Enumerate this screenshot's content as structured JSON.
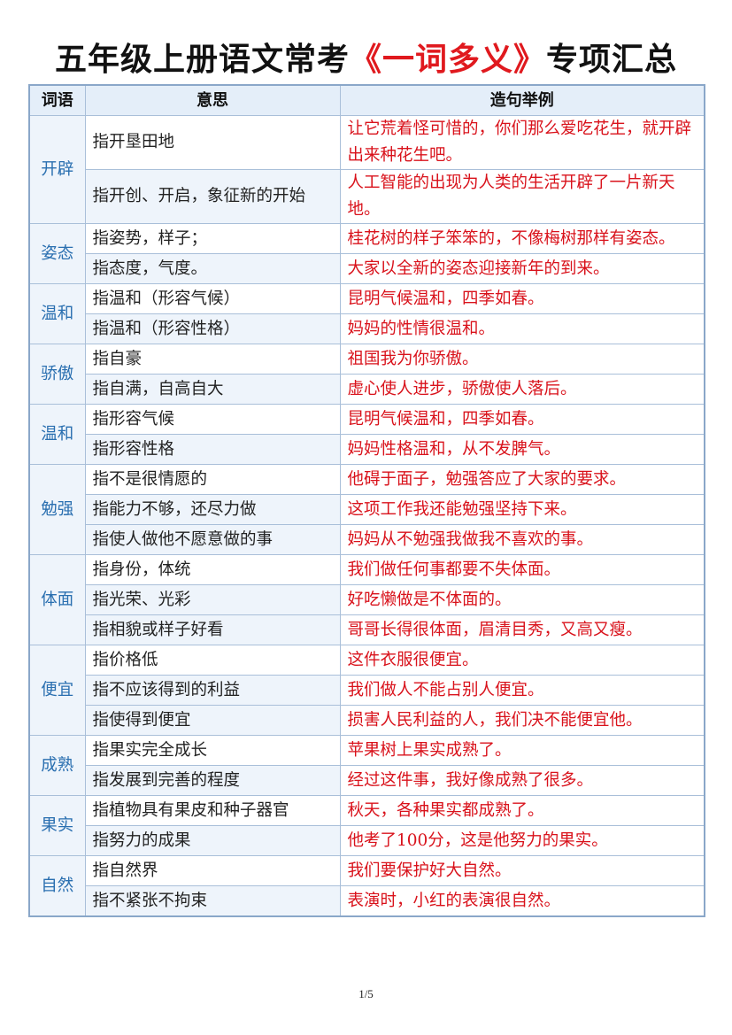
{
  "title": {
    "part1": "五年级上册语文常考",
    "highlight": "《一词多义》",
    "part2": "专项汇总"
  },
  "table": {
    "headers": [
      "词语",
      "意思",
      "造句举例"
    ],
    "groups": [
      {
        "word": "开辟",
        "rows": [
          {
            "meaning": "指开垦田地",
            "example": "让它荒着怪可惜的，你们那么爱吃花生，就开辟出来种花生吧。"
          },
          {
            "meaning": "指开创、开启，象征新的开始",
            "example": "人工智能的出现为人类的生活开辟了一片新天地。"
          }
        ]
      },
      {
        "word": "姿态",
        "rows": [
          {
            "meaning": "指姿势，样子；",
            "example": "桂花树的样子笨笨的，不像梅树那样有姿态。"
          },
          {
            "meaning": "指态度，气度。",
            "example": "大家以全新的姿态迎接新年的到来。"
          }
        ]
      },
      {
        "word": "温和",
        "rows": [
          {
            "meaning": "指温和（形容气候）",
            "example": "昆明气候温和，四季如春。"
          },
          {
            "meaning": "指温和（形容性格）",
            "example": "妈妈的性情很温和。"
          }
        ]
      },
      {
        "word": "骄傲",
        "rows": [
          {
            "meaning": "指自豪",
            "example": "祖国我为你骄傲。"
          },
          {
            "meaning": "指自满，自高自大",
            "example": "虚心使人进步，骄傲使人落后。"
          }
        ]
      },
      {
        "word": "温和",
        "rows": [
          {
            "meaning": "指形容气候",
            "example": "昆明气候温和，四季如春。"
          },
          {
            "meaning": "指形容性格",
            "example": "妈妈性格温和，从不发脾气。"
          }
        ]
      },
      {
        "word": "勉强",
        "rows": [
          {
            "meaning": "指不是很情愿的",
            "example": "他碍于面子，勉强答应了大家的要求。"
          },
          {
            "meaning": "指能力不够，还尽力做",
            "example": "这项工作我还能勉强坚持下来。"
          },
          {
            "meaning": "指使人做他不愿意做的事",
            "example": "妈妈从不勉强我做我不喜欢的事。"
          }
        ]
      },
      {
        "word": "体面",
        "rows": [
          {
            "meaning": "指身份，体统",
            "example": "我们做任何事都要不失体面。"
          },
          {
            "meaning": "指光荣、光彩",
            "example": "好吃懒做是不体面的。"
          },
          {
            "meaning": "指相貌或样子好看",
            "example": "哥哥长得很体面，眉清目秀，又高又瘦。"
          }
        ]
      },
      {
        "word": "便宜",
        "rows": [
          {
            "meaning": "指价格低",
            "example": "这件衣服很便宜。"
          },
          {
            "meaning": "指不应该得到的利益",
            "example": "我们做人不能占别人便宜。"
          },
          {
            "meaning": "指使得到便宜",
            "example": "损害人民利益的人，我们决不能便宜他。"
          }
        ]
      },
      {
        "word": "成熟",
        "rows": [
          {
            "meaning": "指果实完全成长",
            "example": "苹果树上果实成熟了。"
          },
          {
            "meaning": "指发展到完善的程度",
            "example": "经过这件事，我好像成熟了很多。"
          }
        ]
      },
      {
        "word": "果实",
        "rows": [
          {
            "meaning": "指植物具有果皮和种子器官",
            "example": "秋天，各种果实都成熟了。"
          },
          {
            "meaning": "指努力的成果",
            "example": "他考了100分，这是他努力的果实。"
          }
        ]
      },
      {
        "word": "自然",
        "rows": [
          {
            "meaning": "指自然界",
            "example": "我们要保护好大自然。"
          },
          {
            "meaning": "指不紧张不拘束",
            "example": "表演时，小红的表演很自然。"
          }
        ]
      }
    ]
  },
  "footer": {
    "page": "1/5"
  }
}
